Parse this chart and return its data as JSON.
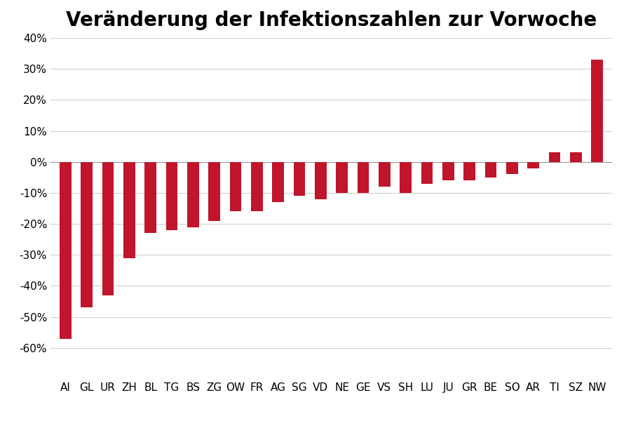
{
  "title": "Veränderung der Infektionszahlen zur Vorwoche",
  "categories": [
    "AI",
    "GL",
    "UR",
    "ZH",
    "BL",
    "TG",
    "BS",
    "ZG",
    "OW",
    "FR",
    "AG",
    "SG",
    "VD",
    "NE",
    "GE",
    "VS",
    "SH",
    "LU",
    "JU",
    "GR",
    "BE",
    "SO",
    "AR",
    "TI",
    "SZ",
    "NW"
  ],
  "values": [
    -57,
    -47,
    -43,
    -31,
    -23,
    -22,
    -21,
    -19,
    -16,
    -16,
    -13,
    -11,
    -12,
    -10,
    -10,
    -8,
    -10,
    -7,
    -6,
    -6,
    -5,
    -4,
    -2,
    3,
    3,
    33
  ],
  "bar_color": "#c0152a",
  "ylim": [
    -70,
    40
  ],
  "yticks": [
    -60,
    -50,
    -40,
    -30,
    -20,
    -10,
    0,
    10,
    20,
    30,
    40
  ],
  "background_color": "#ffffff",
  "grid_color": "#d0d0d0",
  "title_fontsize": 20,
  "tick_fontsize": 11,
  "bar_width": 0.55
}
